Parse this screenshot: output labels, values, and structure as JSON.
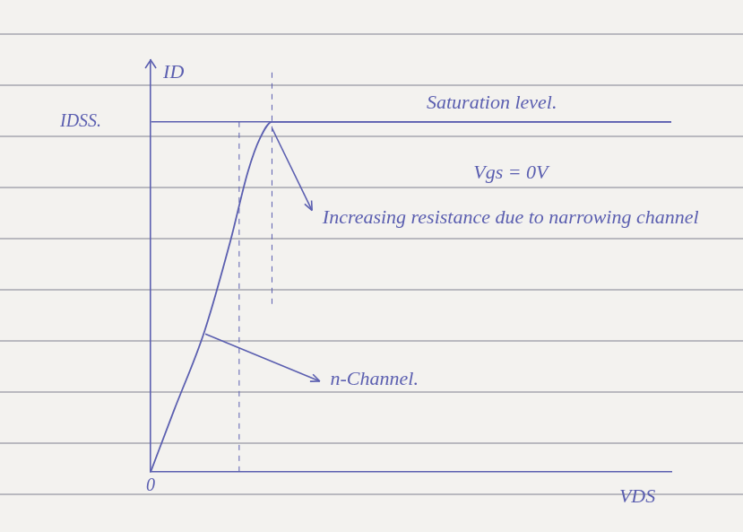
{
  "chart_data": {
    "type": "line",
    "x_label": "VDS",
    "y_label": "ID",
    "x": [
      0,
      0.45,
      1.03,
      1.53,
      1.87,
      2.1,
      2.33,
      3,
      4,
      6,
      8,
      10
    ],
    "values": [
      0,
      1.5,
      3.4,
      5.6,
      7.3,
      8.1,
      8.5,
      8.5,
      8.5,
      8.5,
      8.5,
      8.5
    ],
    "color": "#5b5fb0",
    "xlim": [
      0,
      10
    ],
    "ylim": [
      0,
      10
    ],
    "xticks": [
      0
    ],
    "yticks": [
      {
        "value": 8.5,
        "label": "IDSS."
      }
    ],
    "grid": true,
    "annotations": [
      "Saturation level.",
      "Vgs = 0V",
      "Increasing resistance due to narrowing channel",
      "n-Channel."
    ]
  }
}
